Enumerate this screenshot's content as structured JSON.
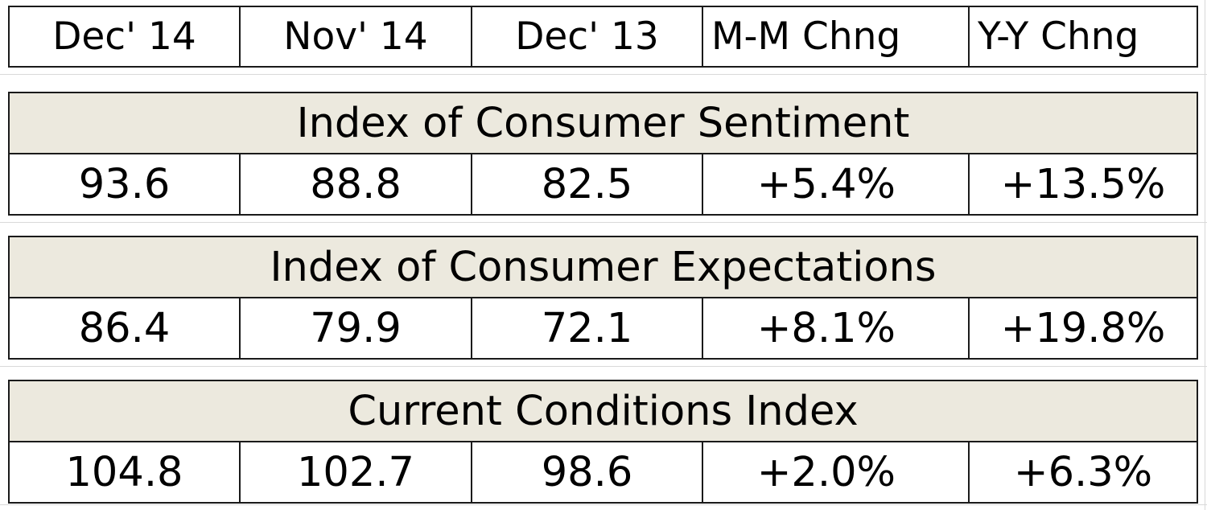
{
  "chart_data": {
    "type": "table",
    "columns": [
      "Dec' 14",
      "Nov' 14",
      "Dec' 13",
      "M-M Chng",
      "Y-Y Chng"
    ],
    "sections": [
      {
        "title": "Index of Consumer Sentiment",
        "values": [
          "93.6",
          "88.8",
          "82.5",
          "+5.4%",
          "+13.5%"
        ]
      },
      {
        "title": "Index of Consumer Expectations",
        "values": [
          "86.4",
          "79.9",
          "72.1",
          "+8.1%",
          "+19.8%"
        ]
      },
      {
        "title": "Current Conditions Index",
        "values": [
          "104.8",
          "102.7",
          "98.6",
          "+2.0%",
          "+6.3%"
        ]
      }
    ]
  },
  "colors": {
    "section_fill": "#ece9de",
    "border": "#1a1a1a",
    "gridline": "#d9d9d9"
  }
}
